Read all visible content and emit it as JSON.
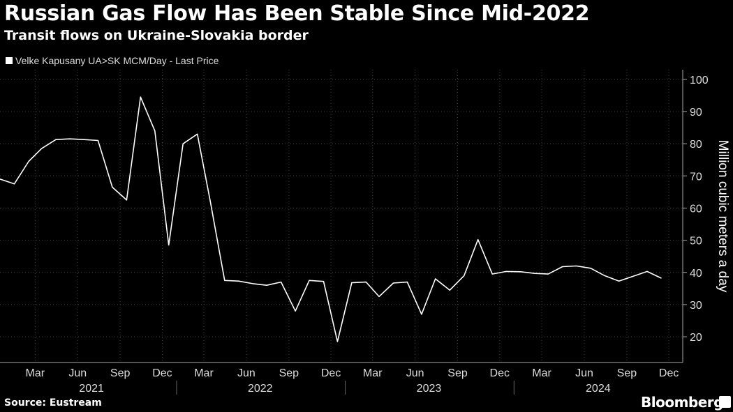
{
  "header": {
    "title": "Russian Gas Flow Has Been Stable Since Mid-2022",
    "subtitle": "Transit flows on Ukraine-Slovakia border"
  },
  "footer": {
    "source": "Source: Eustream",
    "brand": "Bloomberg"
  },
  "colors": {
    "background": "#000000",
    "line": "#ffffff",
    "grid": "#444444"
  },
  "chart_data": {
    "type": "line",
    "title": "Russian Gas Flow Has Been Stable Since Mid-2022",
    "subtitle": "Transit flows on Ukraine-Slovakia border",
    "ylabel": "Million cubic meters a day",
    "xlabel": "",
    "ylim": [
      12,
      103
    ],
    "y_ticks": [
      20,
      30,
      40,
      50,
      60,
      70,
      80,
      90,
      100
    ],
    "y_axis_side": "right",
    "grid": true,
    "legend_position": "top-left",
    "x_range": [
      "2020-12-15",
      "2024-12-31"
    ],
    "month_ticks": [
      {
        "date": "2021-03",
        "label": "Mar"
      },
      {
        "date": "2021-06",
        "label": "Jun"
      },
      {
        "date": "2021-09",
        "label": "Sep"
      },
      {
        "date": "2021-12",
        "label": "Dec"
      },
      {
        "date": "2022-03",
        "label": "Mar"
      },
      {
        "date": "2022-06",
        "label": "Jun"
      },
      {
        "date": "2022-09",
        "label": "Sep"
      },
      {
        "date": "2022-12",
        "label": "Dec"
      },
      {
        "date": "2023-03",
        "label": "Mar"
      },
      {
        "date": "2023-06",
        "label": "Jun"
      },
      {
        "date": "2023-09",
        "label": "Sep"
      },
      {
        "date": "2023-12",
        "label": "Dec"
      },
      {
        "date": "2024-03",
        "label": "Mar"
      },
      {
        "date": "2024-06",
        "label": "Jun"
      },
      {
        "date": "2024-09",
        "label": "Sep"
      },
      {
        "date": "2024-12",
        "label": "Dec"
      }
    ],
    "year_labels": [
      {
        "year": "2021",
        "center": "2021-07-01"
      },
      {
        "year": "2022",
        "center": "2022-07-01"
      },
      {
        "year": "2023",
        "center": "2023-07-01"
      },
      {
        "year": "2024",
        "center": "2024-07-01"
      }
    ],
    "year_dividers": [
      "2022-01-01",
      "2023-01-01",
      "2024-01-01"
    ],
    "series": [
      {
        "name": "Velke Kapusany UA>SK MCM/Day - Last Price",
        "x": [
          "2020-12-15",
          "2021-01-15",
          "2021-02-15",
          "2021-03-15",
          "2021-04-15",
          "2021-05-15",
          "2021-06-15",
          "2021-07-15",
          "2021-08-15",
          "2021-09-15",
          "2021-10-15",
          "2021-11-15",
          "2021-12-15",
          "2022-01-15",
          "2022-02-15",
          "2022-03-15",
          "2022-04-15",
          "2022-05-15",
          "2022-06-15",
          "2022-07-15",
          "2022-08-15",
          "2022-09-15",
          "2022-10-15",
          "2022-11-15",
          "2022-12-15",
          "2023-01-15",
          "2023-02-15",
          "2023-03-15",
          "2023-04-15",
          "2023-05-15",
          "2023-06-15",
          "2023-07-15",
          "2023-08-15",
          "2023-09-15",
          "2023-10-15",
          "2023-11-15",
          "2023-12-15",
          "2024-01-15",
          "2024-02-15",
          "2024-03-15",
          "2024-04-15",
          "2024-05-15",
          "2024-06-15",
          "2024-07-15",
          "2024-08-15",
          "2024-09-15",
          "2024-10-15",
          "2024-11-15",
          "2024-12-15"
        ],
        "values": [
          69,
          67.5,
          74.5,
          78.5,
          81.3,
          81.5,
          81.3,
          81,
          66.5,
          62.5,
          94.5,
          84,
          48.5,
          80,
          83,
          62,
          37.5,
          37.3,
          36.5,
          36,
          37,
          28,
          37.5,
          37.2,
          18.5,
          36.8,
          37,
          32.5,
          36.7,
          37,
          27,
          38,
          34.5,
          39,
          50.2,
          39.5,
          40.3,
          40.2,
          39.7,
          39.5,
          41.8,
          42,
          41.3,
          39,
          37.3,
          38.8,
          40.3,
          38.2,
          null
        ]
      }
    ]
  }
}
